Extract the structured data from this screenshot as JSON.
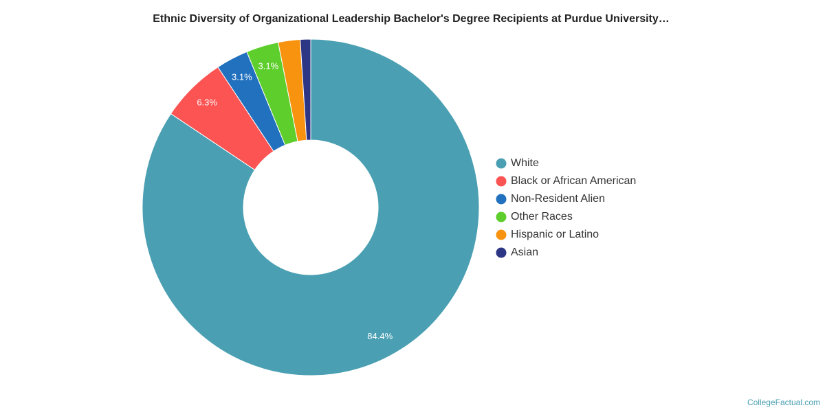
{
  "chart_data": {
    "type": "donut",
    "title": "Ethnic Diversity of Organizational Leadership Bachelor's Degree Recipients at Purdue University…",
    "categories": [
      "White",
      "Black or African American",
      "Non-Resident Alien",
      "Other Races",
      "Hispanic or Latino",
      "Asian"
    ],
    "values": [
      84.4,
      6.3,
      3.1,
      3.1,
      2.1,
      1.0
    ],
    "value_labels": [
      "84.4%",
      "6.3%",
      "3.1%",
      "3.1%",
      null,
      null
    ],
    "colors": [
      "#4a9fb2",
      "#fc5353",
      "#2271be",
      "#5ece2d",
      "#f7930f",
      "#2d3585"
    ],
    "legend": "right",
    "source": "CollegeFactual.com"
  }
}
